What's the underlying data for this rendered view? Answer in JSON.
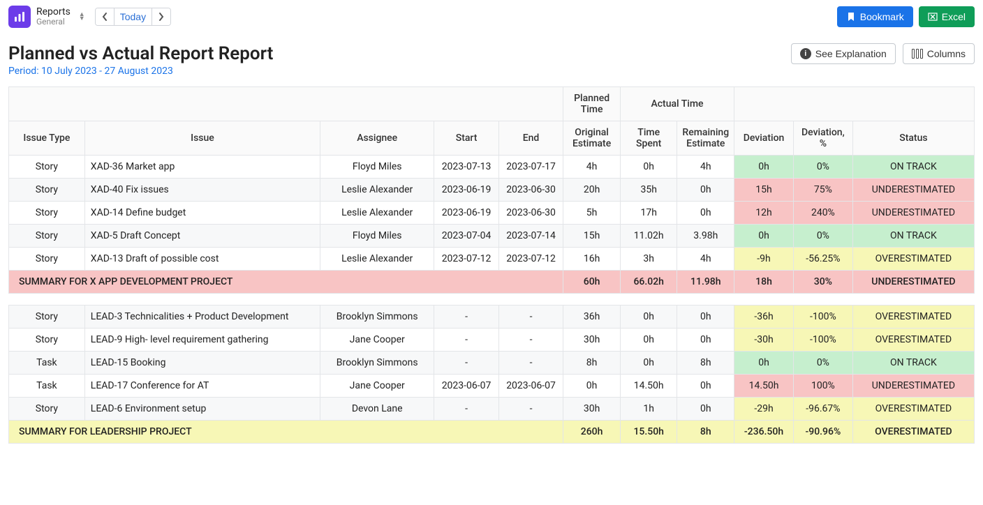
{
  "app": {
    "title": "Reports",
    "subtitle": "General"
  },
  "nav": {
    "prev": "‹",
    "today": "Today",
    "next": "›"
  },
  "buttons": {
    "bookmark": "Bookmark",
    "excel": "Excel",
    "explain": "See Explanation",
    "columns": "Columns"
  },
  "page": {
    "title": "Planned vs Actual Report Report",
    "period": "Period: 10 July 2023 - 27 August 2023"
  },
  "columns": {
    "group_planned": "Planned Time",
    "group_actual": "Actual Time",
    "issue_type": "Issue Type",
    "issue": "Issue",
    "assignee": "Assignee",
    "start": "Start",
    "end": "End",
    "orig_est": "Original Estimate",
    "time_spent": "Time Spent",
    "remaining": "Remaining Estimate",
    "deviation": "Deviation",
    "deviation_pct": "Deviation, %",
    "status": "Status"
  },
  "status_colors": {
    "ON TRACK": "bg-green",
    "UNDERESTIMATED": "bg-red",
    "OVERESTIMATED": "bg-yellow"
  },
  "groups": [
    {
      "rows": [
        {
          "type": "Story",
          "issue": "XAD-36 Market app",
          "assignee": "Floyd Miles",
          "start": "2023-07-13",
          "end": "2023-07-17",
          "orig": "4h",
          "spent": "0h",
          "rem": "4h",
          "dev": "0h",
          "devp": "0%",
          "status": "ON TRACK"
        },
        {
          "type": "Story",
          "issue": "XAD-40 Fix issues",
          "assignee": "Leslie Alexander",
          "start": "2023-06-19",
          "end": "2023-06-30",
          "orig": "20h",
          "spent": "35h",
          "rem": "0h",
          "dev": "15h",
          "devp": "75%",
          "status": "UNDERESTIMATED"
        },
        {
          "type": "Story",
          "issue": "XAD-14 Define budget",
          "assignee": "Leslie Alexander",
          "start": "2023-06-19",
          "end": "2023-06-30",
          "orig": "5h",
          "spent": "17h",
          "rem": "0h",
          "dev": "12h",
          "devp": "240%",
          "status": "UNDERESTIMATED"
        },
        {
          "type": "Story",
          "issue": "XAD-5 Draft Concept",
          "assignee": "Floyd Miles",
          "start": "2023-07-04",
          "end": "2023-07-14",
          "orig": "15h",
          "spent": "11.02h",
          "rem": "3.98h",
          "dev": "0h",
          "devp": "0%",
          "status": "ON TRACK"
        },
        {
          "type": "Story",
          "issue": "XAD-13 Draft of possible cost",
          "assignee": "Leslie Alexander",
          "start": "2023-07-12",
          "end": "2023-07-12",
          "orig": "16h",
          "spent": "3h",
          "rem": "4h",
          "dev": "-9h",
          "devp": "-56.25%",
          "status": "OVERESTIMATED"
        }
      ],
      "summary": {
        "label": "SUMMARY FOR X APP DEVELOPMENT PROJECT",
        "orig": "60h",
        "spent": "66.02h",
        "rem": "11.98h",
        "dev": "18h",
        "devp": "30%",
        "status": "UNDERESTIMATED"
      }
    },
    {
      "rows": [
        {
          "type": "Story",
          "issue": "LEAD-3 Technicalities + Product Development",
          "assignee": "Brooklyn Simmons",
          "start": "-",
          "end": "-",
          "orig": "36h",
          "spent": "0h",
          "rem": "0h",
          "dev": "-36h",
          "devp": "-100%",
          "status": "OVERESTIMATED"
        },
        {
          "type": "Story",
          "issue": "LEAD-9 High- level requirement gathering",
          "assignee": "Jane Cooper",
          "start": "-",
          "end": "-",
          "orig": "30h",
          "spent": "0h",
          "rem": "0h",
          "dev": "-30h",
          "devp": "-100%",
          "status": "OVERESTIMATED"
        },
        {
          "type": "Task",
          "issue": "LEAD-15 Booking",
          "assignee": "Brooklyn Simmons",
          "start": "-",
          "end": "-",
          "orig": "8h",
          "spent": "0h",
          "rem": "8h",
          "dev": "0h",
          "devp": "0%",
          "status": "ON TRACK"
        },
        {
          "type": "Task",
          "issue": "LEAD-17 Conference for AT",
          "assignee": "Jane Cooper",
          "start": "2023-06-07",
          "end": "2023-06-07",
          "orig": "0h",
          "spent": "14.50h",
          "rem": "0h",
          "dev": "14.50h",
          "devp": "100%",
          "status": "UNDERESTIMATED"
        },
        {
          "type": "Story",
          "issue": "LEAD-6 Environment setup",
          "assignee": "Devon Lane",
          "start": "-",
          "end": "-",
          "orig": "30h",
          "spent": "1h",
          "rem": "0h",
          "dev": "-29h",
          "devp": "-96.67%",
          "status": "OVERESTIMATED"
        }
      ],
      "summary": {
        "label": "SUMMARY FOR LEADERSHIP PROJECT",
        "orig": "260h",
        "spent": "15.50h",
        "rem": "8h",
        "dev": "-236.50h",
        "devp": "-90.96%",
        "status": "OVERESTIMATED"
      }
    }
  ]
}
